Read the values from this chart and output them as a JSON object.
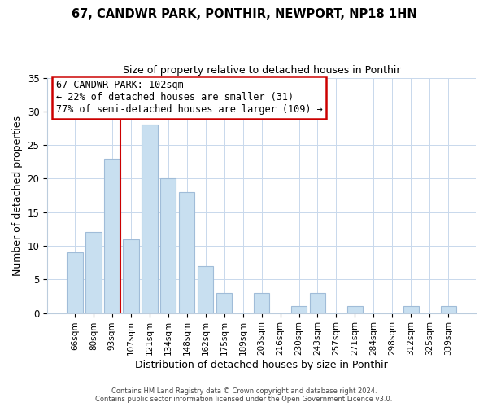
{
  "title": "67, CANDWR PARK, PONTHIR, NEWPORT, NP18 1HN",
  "subtitle": "Size of property relative to detached houses in Ponthir",
  "xlabel": "Distribution of detached houses by size in Ponthir",
  "ylabel": "Number of detached properties",
  "bar_labels": [
    "66sqm",
    "80sqm",
    "93sqm",
    "107sqm",
    "121sqm",
    "134sqm",
    "148sqm",
    "162sqm",
    "175sqm",
    "189sqm",
    "203sqm",
    "216sqm",
    "230sqm",
    "243sqm",
    "257sqm",
    "271sqm",
    "284sqm",
    "298sqm",
    "312sqm",
    "325sqm",
    "339sqm"
  ],
  "bar_values": [
    9,
    12,
    23,
    11,
    28,
    20,
    18,
    7,
    3,
    0,
    3,
    0,
    1,
    3,
    0,
    1,
    0,
    0,
    1,
    0,
    1
  ],
  "bar_color": "#c8dff0",
  "bar_edge_color": "#a0bcd8",
  "vline_color": "#cc0000",
  "annotation_title": "67 CANDWR PARK: 102sqm",
  "annotation_line1": "← 22% of detached houses are smaller (31)",
  "annotation_line2": "77% of semi-detached houses are larger (109) →",
  "annotation_box_edge": "#cc0000",
  "ylim": [
    0,
    35
  ],
  "yticks": [
    0,
    5,
    10,
    15,
    20,
    25,
    30,
    35
  ],
  "footer1": "Contains HM Land Registry data © Crown copyright and database right 2024.",
  "footer2": "Contains public sector information licensed under the Open Government Licence v3.0."
}
